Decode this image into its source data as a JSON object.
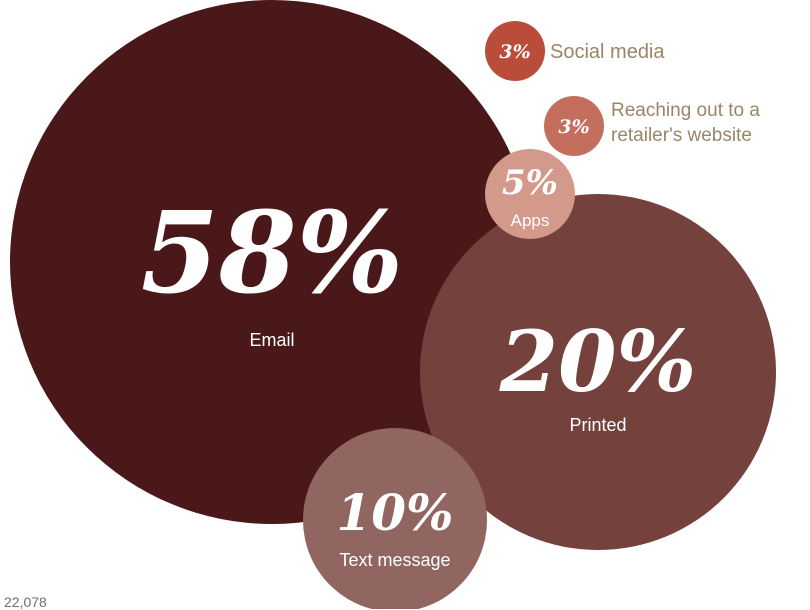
{
  "chart_data": {
    "type": "bubble",
    "unit": "%",
    "items": [
      {
        "label": "Email",
        "value": 58,
        "value_text": "58%",
        "color": "#4a1818"
      },
      {
        "label": "Printed",
        "value": 20,
        "value_text": "20%",
        "color": "#74413c"
      },
      {
        "label": "Text message",
        "value": 10,
        "value_text": "10%",
        "color": "#926660"
      },
      {
        "label": "Apps",
        "value": 5,
        "value_text": "5%",
        "color": "#d3998a"
      },
      {
        "label": "Social media",
        "value": 3,
        "value_text": "3%",
        "color": "#b94d39"
      },
      {
        "label": "Reaching out to a retailer's website",
        "label_lines": [
          "Reaching out to a",
          "retailer's website"
        ],
        "value": 3,
        "value_text": "3%",
        "color": "#c46f5d"
      }
    ],
    "legend_text_color": "#9a8566"
  },
  "footnote": {
    "text": "22,078"
  }
}
